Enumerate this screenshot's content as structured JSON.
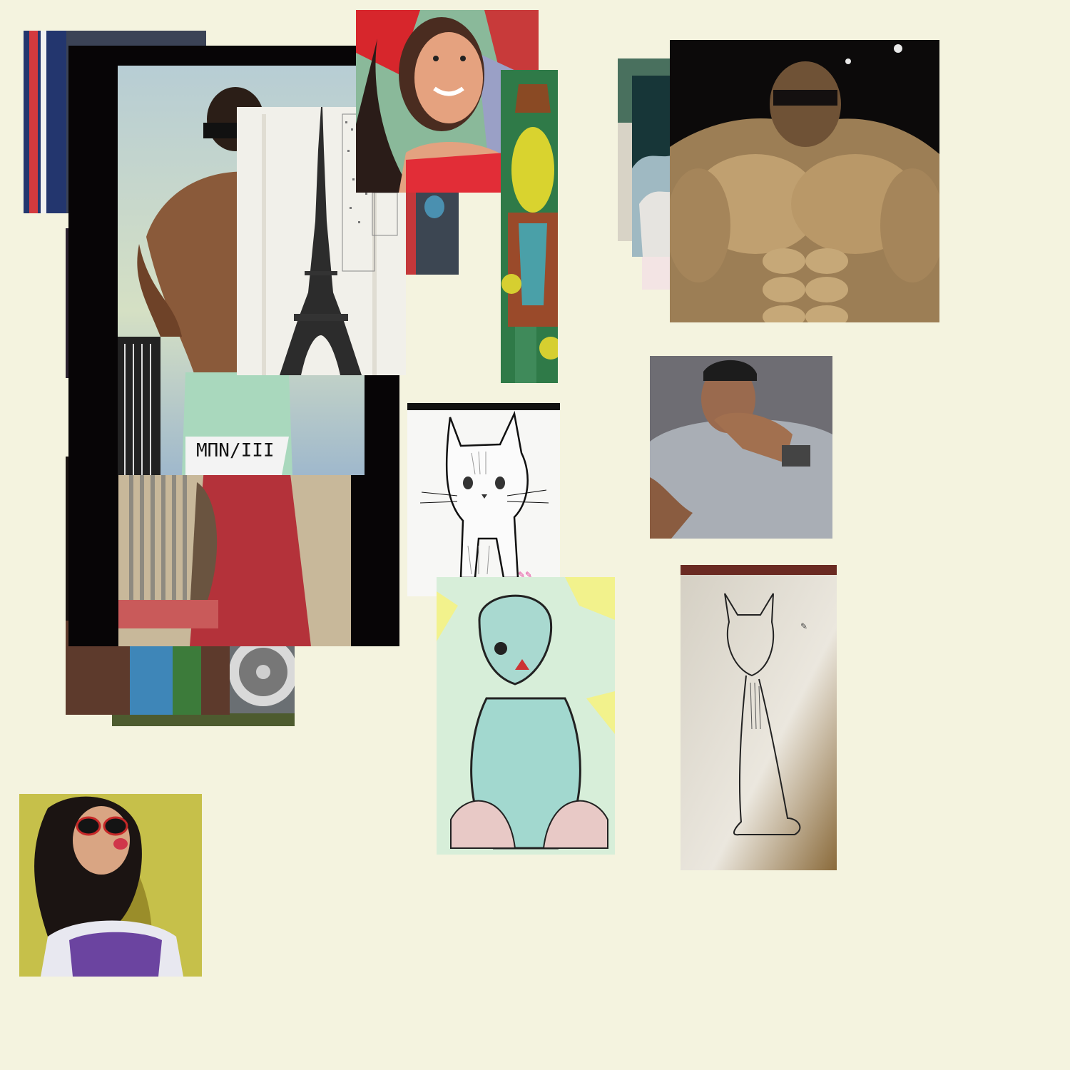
{
  "canvas": {
    "background": "#f4f3df"
  },
  "images": [
    {
      "subject": "flag-photo"
    },
    {
      "subject": "dark-room-photo"
    },
    {
      "subject": "bodybuilder-photo"
    },
    {
      "subject": "eiffel-tower-sketch"
    },
    {
      "subject": "woman-portrait-illustration"
    },
    {
      "subject": "cartoon-character"
    },
    {
      "subject": "red-dress-photo"
    },
    {
      "subject": "car-wheel-photo"
    },
    {
      "subject": "muscular-man-sunglasses"
    },
    {
      "subject": "man-hand-to-face"
    },
    {
      "subject": "cat-sketch"
    },
    {
      "subject": "teal-cat-illustration"
    },
    {
      "subject": "cat-line-drawing"
    },
    {
      "subject": "woman-sunglasses-selfie"
    },
    {
      "subject": "dark-scene-photo"
    }
  ]
}
